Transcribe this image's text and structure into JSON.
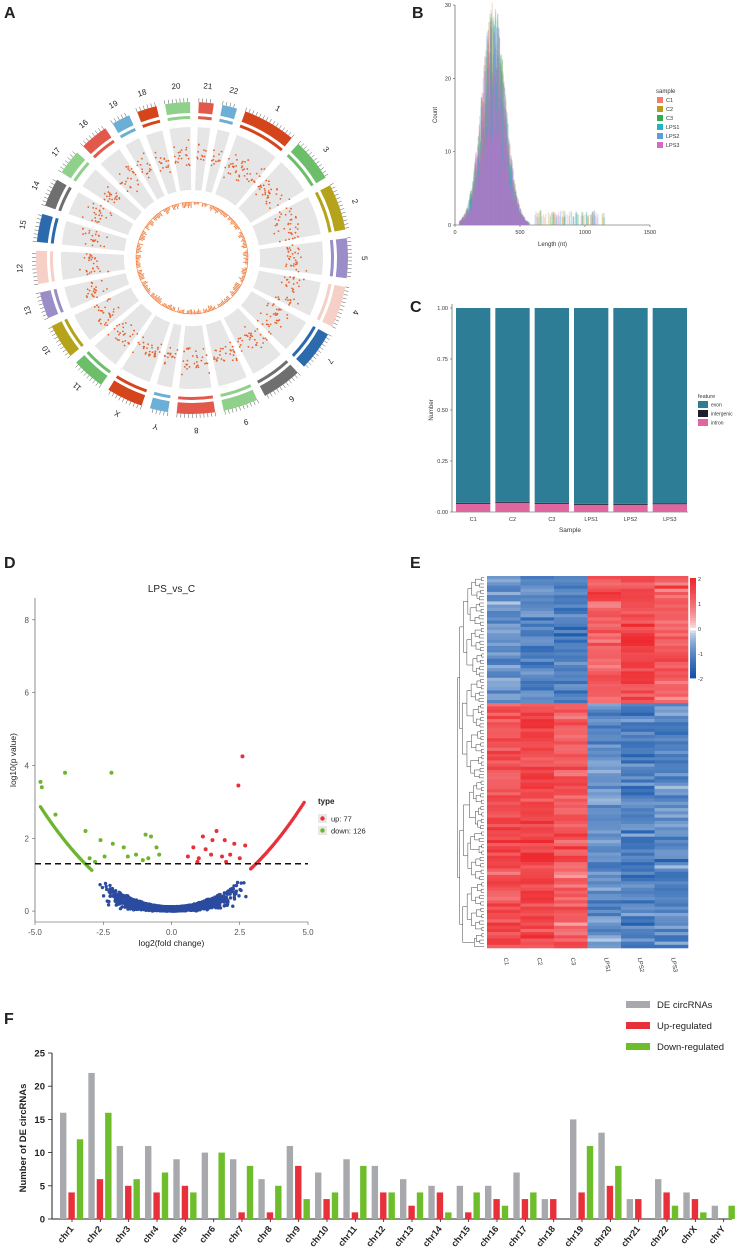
{
  "panel_labels": {
    "a": "A",
    "b": "B",
    "c": "C",
    "d": "D",
    "e": "E",
    "f": "F"
  },
  "colors": {
    "exon": "#2E7D96",
    "intergenic": "#1E1E2E",
    "intron": "#E066A0",
    "up": "#E8303A",
    "down": "#6CB52D",
    "ns": "#2B4BA0",
    "de": "#A7A9AC",
    "up_reg": "#E8303A",
    "down_reg": "#6DBE2A",
    "heat_high": "#EE2A2F",
    "heat_mid": "#FFFFFF",
    "heat_low": "#0B4FA8"
  },
  "chart_data": [
    {
      "id": "A",
      "type": "circos",
      "chromosomes": [
        {
          "name": "1",
          "color": "#D4451C"
        },
        {
          "name": "3",
          "color": "#6DBE6A"
        },
        {
          "name": "2",
          "color": "#B5A31C"
        },
        {
          "name": "5",
          "color": "#9B8EC8"
        },
        {
          "name": "4",
          "color": "#F6D0C6"
        },
        {
          "name": "7",
          "color": "#2C6AAE"
        },
        {
          "name": "6",
          "color": "#6F6F6F"
        },
        {
          "name": "9",
          "color": "#8FD08B"
        },
        {
          "name": "8",
          "color": "#E2584B"
        },
        {
          "name": "Y",
          "color": "#6BAED6"
        },
        {
          "name": "X",
          "color": "#D4451C"
        },
        {
          "name": "11",
          "color": "#6DBE6A"
        },
        {
          "name": "10",
          "color": "#B5A31C"
        },
        {
          "name": "13",
          "color": "#9B8EC8"
        },
        {
          "name": "12",
          "color": "#F6D0C6"
        },
        {
          "name": "15",
          "color": "#2C6AAE"
        },
        {
          "name": "14",
          "color": "#6F6F6F"
        },
        {
          "name": "17",
          "color": "#8FD08B"
        },
        {
          "name": "16",
          "color": "#E2584B"
        },
        {
          "name": "19",
          "color": "#6BAED6"
        },
        {
          "name": "18",
          "color": "#D4451C"
        },
        {
          "name": "20",
          "color": "#8FD08B"
        },
        {
          "name": "21",
          "color": "#E2584B"
        },
        {
          "name": "22",
          "color": "#6BAED6"
        }
      ]
    },
    {
      "id": "B",
      "type": "histogram",
      "xlabel": "Length (nt)",
      "ylabel": "Count",
      "xlim": [
        0,
        1500
      ],
      "ylim": [
        0,
        30
      ],
      "xticks": [
        0,
        500,
        1000,
        1500
      ],
      "yticks": [
        0,
        10,
        20,
        30
      ],
      "legend_title": "sample",
      "series": [
        {
          "name": "C1",
          "color": "#F27C6E"
        },
        {
          "name": "C2",
          "color": "#B79F1E"
        },
        {
          "name": "C3",
          "color": "#2FB04A"
        },
        {
          "name": "LPS1",
          "color": "#20B5C0"
        },
        {
          "name": "LPS2",
          "color": "#5A9FD9"
        },
        {
          "name": "LPS3",
          "color": "#D867C8"
        }
      ],
      "peak_length": 300,
      "peak_count": 30
    },
    {
      "id": "C",
      "type": "bar",
      "xlabel": "Sample",
      "ylabel": "Number",
      "ylim": [
        0,
        1
      ],
      "yticks": [
        "0.00",
        "0.25",
        "0.50",
        "0.75",
        "1.00"
      ],
      "categories": [
        "C1",
        "C2",
        "C3",
        "LPS1",
        "LPS2",
        "LPS3"
      ],
      "legend_title": "feature",
      "series": [
        {
          "name": "exon",
          "values": [
            0.955,
            0.95,
            0.955,
            0.96,
            0.96,
            0.957
          ]
        },
        {
          "name": "intergenic",
          "values": [
            0.005,
            0.005,
            0.005,
            0.005,
            0.005,
            0.005
          ]
        },
        {
          "name": "intron",
          "values": [
            0.04,
            0.045,
            0.04,
            0.035,
            0.035,
            0.038
          ]
        }
      ]
    },
    {
      "id": "D",
      "type": "scatter",
      "title": "LPS_vs_C",
      "xlabel": "log2(fold change)",
      "ylabel": "log10(p value)",
      "xlim": [
        -5,
        5
      ],
      "ylim": [
        -0.3,
        8.6
      ],
      "xticks": [
        "-5.0",
        "-2.5",
        "0.0",
        "2.5",
        "5.0"
      ],
      "yticks": [
        "0",
        "2",
        "4",
        "6",
        "8"
      ],
      "threshold": 1.3,
      "legend_title": "type",
      "legend_items": [
        "up: 77",
        "down: 126"
      ],
      "up_points": [
        [
          2.6,
          4.25
        ],
        [
          2.45,
          3.45
        ],
        [
          1.65,
          2.2
        ],
        [
          1.15,
          2.05
        ],
        [
          1.5,
          1.95
        ],
        [
          1.95,
          1.95
        ],
        [
          2.3,
          1.85
        ],
        [
          2.7,
          1.8
        ],
        [
          0.8,
          1.75
        ],
        [
          1.25,
          1.7
        ],
        [
          2.15,
          1.55
        ],
        [
          1.45,
          1.55
        ],
        [
          0.6,
          1.5
        ],
        [
          1.85,
          1.5
        ],
        [
          1.0,
          1.45
        ],
        [
          2.5,
          1.45
        ],
        [
          0.95,
          1.35
        ],
        [
          2.0,
          1.35
        ]
      ],
      "down_points": [
        [
          -4.8,
          3.55
        ],
        [
          -4.75,
          3.4
        ],
        [
          -3.9,
          3.8
        ],
        [
          -2.2,
          3.8
        ],
        [
          -4.25,
          2.65
        ],
        [
          -3.15,
          2.2
        ],
        [
          -2.6,
          1.95
        ],
        [
          -2.15,
          1.85
        ],
        [
          -1.75,
          1.75
        ],
        [
          -0.95,
          2.1
        ],
        [
          -0.75,
          2.05
        ],
        [
          -0.55,
          1.75
        ],
        [
          -1.3,
          1.55
        ],
        [
          -1.6,
          1.5
        ],
        [
          -2.45,
          1.5
        ],
        [
          -0.85,
          1.45
        ],
        [
          -3.0,
          1.45
        ],
        [
          -1.05,
          1.4
        ],
        [
          -2.8,
          1.35
        ],
        [
          -0.45,
          1.55
        ]
      ]
    },
    {
      "id": "E",
      "type": "heatmap",
      "columns": [
        "C1",
        "C2",
        "C3",
        "LPS1",
        "LPS2",
        "LPS3"
      ],
      "colorbar_ticks": [
        "2",
        "1",
        "0",
        "-1",
        "-2"
      ],
      "clusters": [
        {
          "rows": 40,
          "pattern": [
            -0.8,
            -1.0,
            -1.1,
            1.2,
            1.5,
            1.2
          ]
        },
        {
          "rows": 77,
          "pattern": [
            1.4,
            1.5,
            1.2,
            -0.9,
            -1.1,
            -1.0
          ]
        }
      ]
    },
    {
      "id": "F",
      "type": "bar",
      "ylabel": "Number of DE circRNAs",
      "ylim": [
        0,
        25
      ],
      "yticks": [
        0,
        5,
        10,
        15,
        20,
        25
      ],
      "categories": [
        "chr1",
        "chr2",
        "chr3",
        "chr4",
        "chr5",
        "chr6",
        "chr7",
        "chr8",
        "chr9",
        "chr10",
        "chr11",
        "chr12",
        "chr13",
        "chr14",
        "chr15",
        "chr16",
        "chr17",
        "chr18",
        "chr19",
        "chr20",
        "chr21",
        "chr22",
        "chrX",
        "chrY"
      ],
      "series": [
        {
          "name": "DE circRNAs",
          "values": [
            16,
            22,
            11,
            11,
            9,
            10,
            9,
            6,
            11,
            7,
            9,
            8,
            6,
            5,
            5,
            5,
            7,
            3,
            15,
            13,
            3,
            6,
            4,
            2
          ]
        },
        {
          "name": "Up-regulated",
          "values": [
            4,
            6,
            5,
            4,
            5,
            0,
            1,
            1,
            8,
            3,
            1,
            4,
            2,
            4,
            1,
            3,
            3,
            3,
            4,
            5,
            3,
            4,
            3,
            0
          ]
        },
        {
          "name": "Down-regulated",
          "values": [
            12,
            16,
            6,
            7,
            4,
            10,
            8,
            5,
            3,
            4,
            8,
            4,
            4,
            1,
            4,
            2,
            4,
            0,
            11,
            8,
            0,
            2,
            1,
            2
          ]
        }
      ]
    }
  ]
}
